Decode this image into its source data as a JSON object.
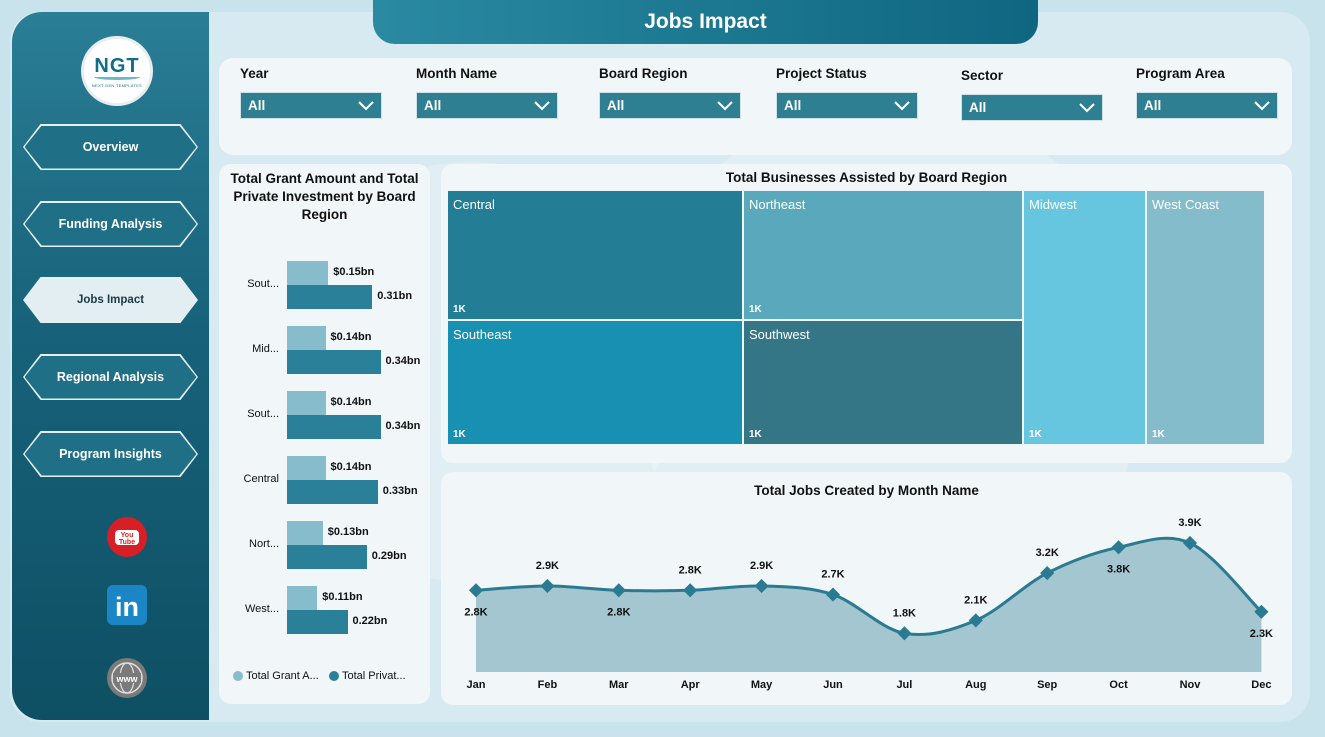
{
  "header": {
    "title": "Jobs Impact"
  },
  "logo": {
    "brand": "NGT",
    "tagline": "NEXT GEN TEMPLATES"
  },
  "sidebar": {
    "items": [
      {
        "label": "Overview"
      },
      {
        "label": "Funding Analysis"
      },
      {
        "label": "Jobs Impact",
        "active": true
      },
      {
        "label": "Regional Analysis"
      },
      {
        "label": "Program Insights"
      }
    ],
    "social": [
      {
        "icon": "youtube-icon",
        "text": "You\nTube"
      },
      {
        "icon": "linkedin-icon",
        "text": "in"
      },
      {
        "icon": "globe-icon",
        "text": "www"
      }
    ]
  },
  "filters": [
    {
      "label": "Year",
      "value": "All"
    },
    {
      "label": "Month Name",
      "value": "All"
    },
    {
      "label": "Board Region",
      "value": "All"
    },
    {
      "label": "Project Status",
      "value": "All"
    },
    {
      "label": "Sector",
      "value": "All"
    },
    {
      "label": "Program Area",
      "value": "All"
    }
  ],
  "colors": {
    "grant": "#86bccc",
    "private": "#2a8099",
    "accent": "#1f6f86",
    "line": "#2a7a92"
  },
  "bar_chart": {
    "title": "Total Grant Amount and Total Private Investment by Board Region",
    "chart_data": {
      "type": "bar",
      "orientation": "horizontal",
      "categories": [
        "Sout...",
        "Mid...",
        "Sout...",
        "Central",
        "Nort...",
        "West..."
      ],
      "series": [
        {
          "name": "Total Grant A...",
          "values": [
            0.15,
            0.14,
            0.14,
            0.14,
            0.13,
            0.11
          ],
          "labels": [
            "$0.15bn",
            "$0.14bn",
            "$0.14bn",
            "$0.14bn",
            "$0.13bn",
            "$0.11bn"
          ]
        },
        {
          "name": "Total Privat...",
          "values": [
            0.31,
            0.34,
            0.34,
            0.33,
            0.29,
            0.22
          ],
          "labels": [
            "0.31bn",
            "0.34bn",
            "0.34bn",
            "0.33bn",
            "0.29bn",
            "0.22bn"
          ]
        }
      ]
    }
  },
  "treemap": {
    "title": "Total Businesses Assisted by Board Region",
    "chart_data": {
      "type": "treemap",
      "items": [
        {
          "name": "Central",
          "label": "1K",
          "color": "#237d94"
        },
        {
          "name": "Northeast",
          "label": "1K",
          "color": "#5aa8bc"
        },
        {
          "name": "Southeast",
          "label": "1K",
          "color": "#1790b1"
        },
        {
          "name": "Southwest",
          "label": "1K",
          "color": "#357686"
        },
        {
          "name": "Midwest",
          "label": "1K",
          "color": "#66c6e0"
        },
        {
          "name": "West Coast",
          "label": "1K",
          "color": "#85bccb"
        }
      ]
    }
  },
  "line_chart": {
    "title": "Total Jobs Created by Month Name",
    "chart_data": {
      "type": "area",
      "categories": [
        "Jan",
        "Feb",
        "Mar",
        "Apr",
        "May",
        "Jun",
        "Jul",
        "Aug",
        "Sep",
        "Oct",
        "Nov",
        "Dec"
      ],
      "values": [
        2.8,
        2.9,
        2.8,
        2.8,
        2.9,
        2.7,
        1.8,
        2.1,
        3.2,
        3.8,
        3.9,
        2.3
      ],
      "labels": [
        "2.8K",
        "2.9K",
        "2.8K",
        "2.8K",
        "2.9K",
        "2.7K",
        "1.8K",
        "2.1K",
        "3.2K",
        "3.8K",
        "3.9K",
        "2.3K"
      ],
      "ylim": [
        0,
        4.5
      ]
    }
  }
}
